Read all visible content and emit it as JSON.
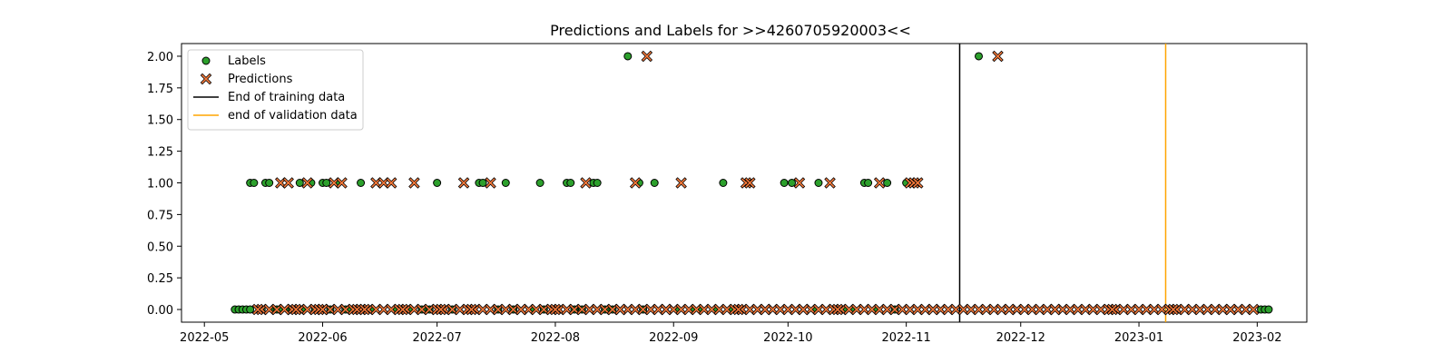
{
  "chart_data": {
    "type": "scatter",
    "title": "Predictions and Labels for >>4260705920003<<",
    "xlabel": "",
    "ylabel": "",
    "xlim": [
      "2022-04-25",
      "2023-02-14"
    ],
    "ylim": [
      -0.1,
      2.1
    ],
    "grid": false,
    "legend_position": "upper-left",
    "x_ticks": [
      "2022-05",
      "2022-06",
      "2022-07",
      "2022-08",
      "2022-09",
      "2022-10",
      "2022-11",
      "2022-12",
      "2023-01",
      "2023-02"
    ],
    "y_ticks": [
      "0.00",
      "0.25",
      "0.50",
      "0.75",
      "1.00",
      "1.25",
      "1.50",
      "1.75",
      "2.00"
    ],
    "series": [
      {
        "name": "Labels",
        "marker": "circle",
        "color": "#2ca02c",
        "edge_color": "#000000",
        "points": [
          {
            "x": "2022-05-09",
            "y": 0
          },
          {
            "x": "2022-05-10",
            "y": 0
          },
          {
            "x": "2022-05-11",
            "y": 0
          },
          {
            "x": "2022-05-12",
            "y": 0
          },
          {
            "x": "2022-05-13",
            "y": 0
          },
          {
            "x": "2022-05-13",
            "y": 1
          },
          {
            "x": "2022-05-14",
            "y": 1
          },
          {
            "x": "2022-05-16",
            "y": 0
          },
          {
            "x": "2022-05-17",
            "y": 1
          },
          {
            "x": "2022-05-18",
            "y": 1
          },
          {
            "x": "2022-05-19",
            "y": 0
          },
          {
            "x": "2022-05-20",
            "y": 0
          },
          {
            "x": "2022-05-21",
            "y": 0
          },
          {
            "x": "2022-05-23",
            "y": 0
          },
          {
            "x": "2022-05-24",
            "y": 0
          },
          {
            "x": "2022-05-26",
            "y": 1
          },
          {
            "x": "2022-05-27",
            "y": 0
          },
          {
            "x": "2022-05-29",
            "y": 1
          },
          {
            "x": "2022-05-30",
            "y": 0
          },
          {
            "x": "2022-06-01",
            "y": 1
          },
          {
            "x": "2022-06-02",
            "y": 1
          },
          {
            "x": "2022-06-03",
            "y": 0
          },
          {
            "x": "2022-06-05",
            "y": 1
          },
          {
            "x": "2022-06-07",
            "y": 0
          },
          {
            "x": "2022-06-08",
            "y": 0
          },
          {
            "x": "2022-06-11",
            "y": 1
          },
          {
            "x": "2022-06-14",
            "y": 0
          },
          {
            "x": "2022-06-20",
            "y": 0
          },
          {
            "x": "2022-06-24",
            "y": 0
          },
          {
            "x": "2022-06-27",
            "y": 0
          },
          {
            "x": "2022-06-28",
            "y": 0
          },
          {
            "x": "2022-06-29",
            "y": 0
          },
          {
            "x": "2022-07-01",
            "y": 1
          },
          {
            "x": "2022-07-05",
            "y": 0
          },
          {
            "x": "2022-07-12",
            "y": 1
          },
          {
            "x": "2022-07-13",
            "y": 1
          },
          {
            "x": "2022-07-17",
            "y": 0
          },
          {
            "x": "2022-07-19",
            "y": 1
          },
          {
            "x": "2022-07-21",
            "y": 0
          },
          {
            "x": "2022-07-26",
            "y": 0
          },
          {
            "x": "2022-07-28",
            "y": 1
          },
          {
            "x": "2022-07-29",
            "y": 0
          },
          {
            "x": "2022-08-04",
            "y": 1
          },
          {
            "x": "2022-08-05",
            "y": 1
          },
          {
            "x": "2022-08-06",
            "y": 0
          },
          {
            "x": "2022-08-08",
            "y": 0
          },
          {
            "x": "2022-08-11",
            "y": 1
          },
          {
            "x": "2022-08-12",
            "y": 1
          },
          {
            "x": "2022-08-14",
            "y": 0
          },
          {
            "x": "2022-08-15",
            "y": 0
          },
          {
            "x": "2022-08-16",
            "y": 0
          },
          {
            "x": "2022-08-20",
            "y": 2
          },
          {
            "x": "2022-08-23",
            "y": 1
          },
          {
            "x": "2022-08-24",
            "y": 0
          },
          {
            "x": "2022-08-27",
            "y": 1
          },
          {
            "x": "2022-09-02",
            "y": 0
          },
          {
            "x": "2022-09-06",
            "y": 0
          },
          {
            "x": "2022-09-08",
            "y": 0
          },
          {
            "x": "2022-09-12",
            "y": 0
          },
          {
            "x": "2022-09-14",
            "y": 1
          },
          {
            "x": "2022-09-16",
            "y": 0
          },
          {
            "x": "2022-09-30",
            "y": 1
          },
          {
            "x": "2022-10-02",
            "y": 1
          },
          {
            "x": "2022-10-08",
            "y": 0
          },
          {
            "x": "2022-10-09",
            "y": 1
          },
          {
            "x": "2022-10-16",
            "y": 0
          },
          {
            "x": "2022-10-18",
            "y": 0
          },
          {
            "x": "2022-10-21",
            "y": 1
          },
          {
            "x": "2022-10-22",
            "y": 1
          },
          {
            "x": "2022-10-24",
            "y": 0
          },
          {
            "x": "2022-10-27",
            "y": 1
          },
          {
            "x": "2022-10-29",
            "y": 0
          },
          {
            "x": "2022-11-01",
            "y": 1
          },
          {
            "x": "2022-11-20",
            "y": 2
          },
          {
            "x": "2023-02-02",
            "y": 0
          },
          {
            "x": "2023-02-03",
            "y": 0
          },
          {
            "x": "2023-02-04",
            "y": 0
          }
        ]
      },
      {
        "name": "Predictions",
        "marker": "x",
        "color": "#f5793a",
        "edge_color": "#000000",
        "points": [
          {
            "x": "2022-05-15",
            "y": 0
          },
          {
            "x": "2022-05-21",
            "y": 1
          },
          {
            "x": "2022-05-22",
            "y": 0
          },
          {
            "x": "2022-05-23",
            "y": 1
          },
          {
            "x": "2022-05-25",
            "y": 0
          },
          {
            "x": "2022-05-28",
            "y": 1
          },
          {
            "x": "2022-05-31",
            "y": 0
          },
          {
            "x": "2022-06-01",
            "y": 0
          },
          {
            "x": "2022-06-04",
            "y": 1
          },
          {
            "x": "2022-06-06",
            "y": 1
          },
          {
            "x": "2022-06-10",
            "y": 0
          },
          {
            "x": "2022-06-12",
            "y": 0
          },
          {
            "x": "2022-06-15",
            "y": 1
          },
          {
            "x": "2022-06-17",
            "y": 1
          },
          {
            "x": "2022-06-19",
            "y": 1
          },
          {
            "x": "2022-06-22",
            "y": 0
          },
          {
            "x": "2022-06-25",
            "y": 1
          },
          {
            "x": "2022-07-02",
            "y": 0
          },
          {
            "x": "2022-07-08",
            "y": 1
          },
          {
            "x": "2022-07-10",
            "y": 0
          },
          {
            "x": "2022-07-15",
            "y": 1
          },
          {
            "x": "2022-07-23",
            "y": 0
          },
          {
            "x": "2022-08-01",
            "y": 0
          },
          {
            "x": "2022-08-09",
            "y": 1
          },
          {
            "x": "2022-08-18",
            "y": 0
          },
          {
            "x": "2022-08-22",
            "y": 1
          },
          {
            "x": "2022-08-25",
            "y": 2
          },
          {
            "x": "2022-08-30",
            "y": 0
          },
          {
            "x": "2022-09-03",
            "y": 1
          },
          {
            "x": "2022-09-18",
            "y": 0
          },
          {
            "x": "2022-09-20",
            "y": 1
          },
          {
            "x": "2022-09-21",
            "y": 1
          },
          {
            "x": "2022-09-25",
            "y": 0
          },
          {
            "x": "2022-10-04",
            "y": 1
          },
          {
            "x": "2022-10-05",
            "y": 0
          },
          {
            "x": "2022-10-12",
            "y": 1
          },
          {
            "x": "2022-10-14",
            "y": 0
          },
          {
            "x": "2022-10-25",
            "y": 1
          },
          {
            "x": "2022-11-02",
            "y": 1
          },
          {
            "x": "2022-11-03",
            "y": 1
          },
          {
            "x": "2022-11-04",
            "y": 1
          },
          {
            "x": "2022-11-08",
            "y": 0
          },
          {
            "x": "2022-11-25",
            "y": 2
          },
          {
            "x": "2022-11-28",
            "y": 0
          },
          {
            "x": "2022-12-10",
            "y": 0
          },
          {
            "x": "2022-12-25",
            "y": 0
          },
          {
            "x": "2023-01-10",
            "y": 0
          },
          {
            "x": "2023-01-25",
            "y": 0
          }
        ]
      },
      {
        "name": "End of training data",
        "type": "vline",
        "color": "#000000",
        "x": "2022-11-15"
      },
      {
        "name": "end of validation data",
        "type": "vline",
        "color": "#ffa500",
        "x": "2023-01-08"
      }
    ],
    "dense_ranges": [
      {
        "series": "Labels",
        "start": "2022-05-08",
        "end": "2023-02-05"
      },
      {
        "series": "Predictions",
        "start": "2022-05-16",
        "end": "2023-01-31"
      }
    ]
  }
}
